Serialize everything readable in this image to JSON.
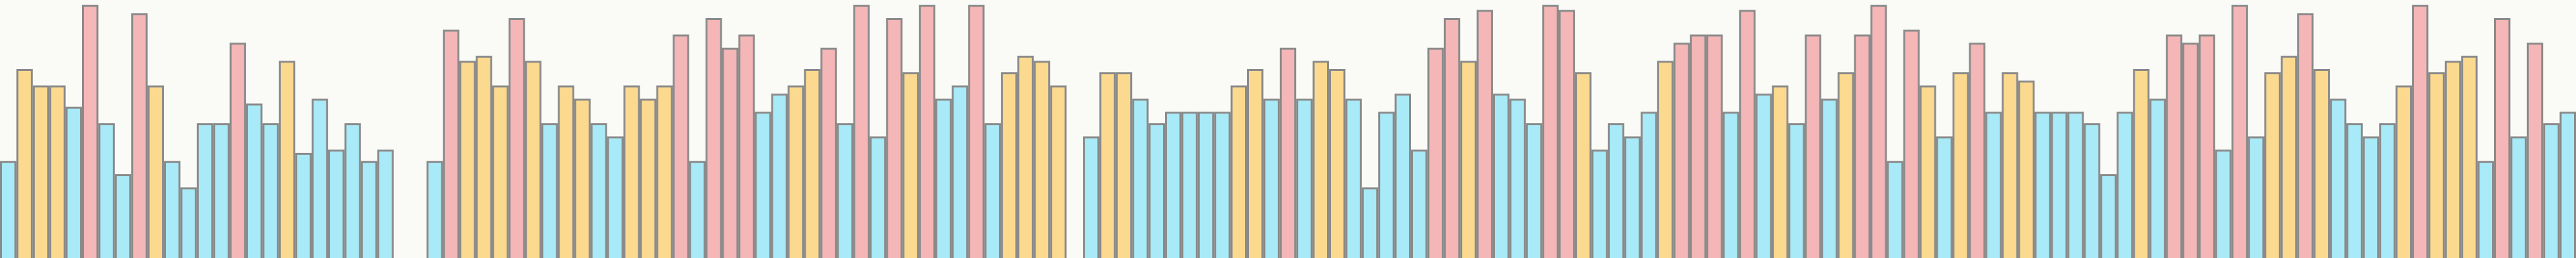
{
  "chart_data": {
    "type": "bar",
    "ylim": [
      0,
      157
    ],
    "values": [
      59,
      115,
      105,
      105,
      92,
      154,
      82,
      51,
      149,
      105,
      59,
      43,
      82,
      82,
      131,
      94,
      82,
      120,
      64,
      97,
      66,
      82,
      59,
      66,
      null,
      null,
      59,
      139,
      120,
      123,
      105,
      146,
      120,
      82,
      105,
      97,
      82,
      74,
      105,
      97,
      105,
      136,
      59,
      146,
      128,
      136,
      89,
      100,
      105,
      115,
      128,
      82,
      154,
      74,
      146,
      113,
      154,
      97,
      105,
      154,
      82,
      113,
      123,
      120,
      105,
      null,
      74,
      113,
      113,
      97,
      82,
      89,
      89,
      89,
      89,
      105,
      115,
      97,
      128,
      97,
      120,
      115,
      97,
      43,
      89,
      100,
      66,
      128,
      146,
      120,
      151,
      100,
      97,
      82,
      154,
      151,
      113,
      66,
      82,
      74,
      89,
      120,
      131,
      136,
      136,
      89,
      151,
      100,
      105,
      82,
      136,
      97,
      113,
      136,
      154,
      59,
      139,
      105,
      74,
      113,
      131,
      89,
      113,
      108,
      89,
      89,
      89,
      82,
      51,
      89,
      115,
      97,
      136,
      131,
      136,
      66,
      154,
      74,
      113,
      123,
      149,
      115,
      97,
      82,
      74,
      82,
      105,
      154,
      113,
      120,
      123,
      59,
      146,
      74,
      131,
      82,
      89
    ],
    "colors": [
      "#a8eaf7",
      "#fbd98e",
      "#fbd98e",
      "#fbd98e",
      "#a8eaf7",
      "#f4b6b6",
      "#a8eaf7",
      "#a8eaf7",
      "#f4b6b6",
      "#fbd98e",
      "#a8eaf7",
      "#a8eaf7",
      "#a8eaf7",
      "#a8eaf7",
      "#f4b6b6",
      "#a8eaf7",
      "#a8eaf7",
      "#fbd98e",
      "#a8eaf7",
      "#a8eaf7",
      "#a8eaf7",
      "#a8eaf7",
      "#a8eaf7",
      "#a8eaf7",
      null,
      null,
      "#a8eaf7",
      "#f4b6b6",
      "#fbd98e",
      "#fbd98e",
      "#fbd98e",
      "#f4b6b6",
      "#fbd98e",
      "#a8eaf7",
      "#fbd98e",
      "#fbd98e",
      "#a8eaf7",
      "#a8eaf7",
      "#fbd98e",
      "#fbd98e",
      "#fbd98e",
      "#f4b6b6",
      "#a8eaf7",
      "#f4b6b6",
      "#f4b6b6",
      "#f4b6b6",
      "#a8eaf7",
      "#a8eaf7",
      "#fbd98e",
      "#fbd98e",
      "#f4b6b6",
      "#a8eaf7",
      "#f4b6b6",
      "#a8eaf7",
      "#f4b6b6",
      "#fbd98e",
      "#f4b6b6",
      "#a8eaf7",
      "#a8eaf7",
      "#f4b6b6",
      "#a8eaf7",
      "#fbd98e",
      "#fbd98e",
      "#fbd98e",
      "#fbd98e",
      null,
      "#a8eaf7",
      "#fbd98e",
      "#fbd98e",
      "#a8eaf7",
      "#a8eaf7",
      "#a8eaf7",
      "#a8eaf7",
      "#a8eaf7",
      "#a8eaf7",
      "#fbd98e",
      "#fbd98e",
      "#a8eaf7",
      "#f4b6b6",
      "#a8eaf7",
      "#fbd98e",
      "#fbd98e",
      "#a8eaf7",
      "#a8eaf7",
      "#a8eaf7",
      "#a8eaf7",
      "#a8eaf7",
      "#f4b6b6",
      "#f4b6b6",
      "#fbd98e",
      "#f4b6b6",
      "#a8eaf7",
      "#a8eaf7",
      "#a8eaf7",
      "#f4b6b6",
      "#f4b6b6",
      "#fbd98e",
      "#a8eaf7",
      "#a8eaf7",
      "#a8eaf7",
      "#a8eaf7",
      "#fbd98e",
      "#f4b6b6",
      "#f4b6b6",
      "#f4b6b6",
      "#a8eaf7",
      "#f4b6b6",
      "#a8eaf7",
      "#fbd98e",
      "#a8eaf7",
      "#f4b6b6",
      "#a8eaf7",
      "#fbd98e",
      "#f4b6b6",
      "#f4b6b6",
      "#a8eaf7",
      "#f4b6b6",
      "#fbd98e",
      "#a8eaf7",
      "#fbd98e",
      "#f4b6b6",
      "#a8eaf7",
      "#fbd98e",
      "#fbd98e",
      "#a8eaf7",
      "#a8eaf7",
      "#a8eaf7",
      "#a8eaf7",
      "#a8eaf7",
      "#a8eaf7",
      "#fbd98e",
      "#a8eaf7",
      "#f4b6b6",
      "#f4b6b6",
      "#f4b6b6",
      "#a8eaf7",
      "#f4b6b6",
      "#a8eaf7",
      "#fbd98e",
      "#fbd98e",
      "#f4b6b6",
      "#fbd98e",
      "#a8eaf7",
      "#a8eaf7",
      "#a8eaf7",
      "#a8eaf7",
      "#fbd98e",
      "#f4b6b6",
      "#fbd98e",
      "#fbd98e",
      "#fbd98e",
      "#a8eaf7",
      "#f4b6b6",
      "#a8eaf7",
      "#f4b6b6",
      "#a8eaf7",
      "#a8eaf7"
    ],
    "edge_color": "#8a8a8a"
  }
}
